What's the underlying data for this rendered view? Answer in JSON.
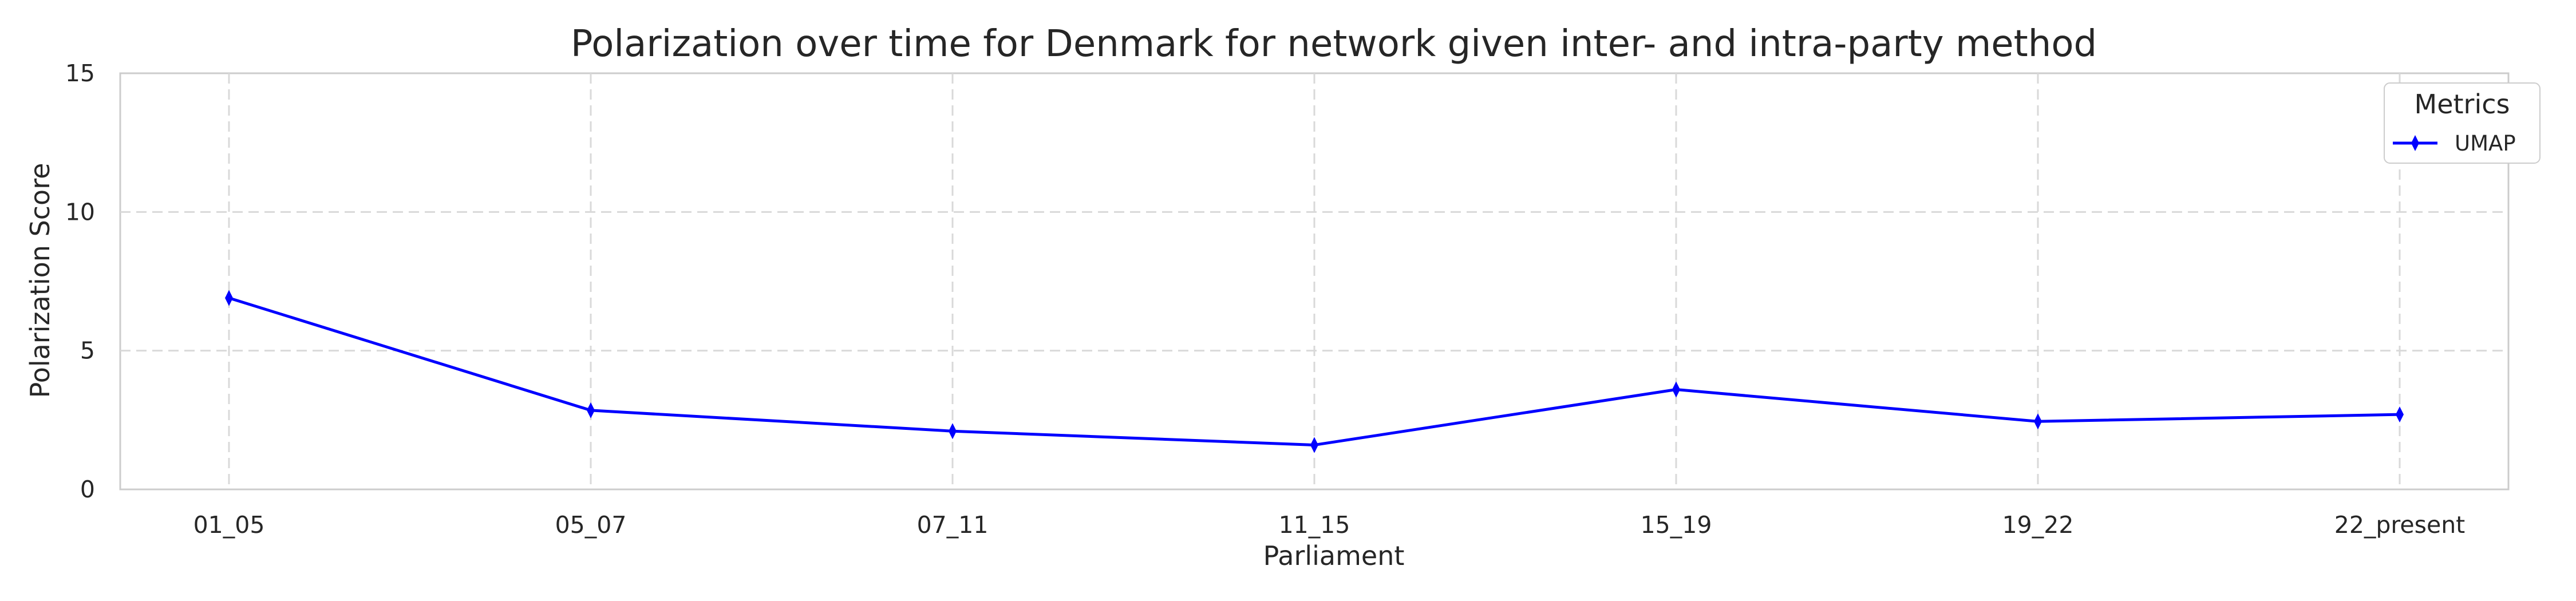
{
  "chart_data": {
    "type": "line",
    "title": "Polarization over time for Denmark for network given inter- and intra-party method",
    "xlabel": "Parliament",
    "ylabel": "Polarization Score",
    "categories": [
      "01_05",
      "05_07",
      "07_11",
      "11_15",
      "15_19",
      "19_22",
      "22_present"
    ],
    "series": [
      {
        "name": "UMAP",
        "values": [
          6.9,
          2.85,
          2.1,
          1.6,
          3.6,
          2.45,
          2.7
        ],
        "color": "#0000ff",
        "marker": "thin-diamond"
      }
    ],
    "ylim": [
      0,
      15
    ],
    "yticks": [
      0,
      5,
      10,
      15
    ],
    "grid": true,
    "grid_style": "dashed",
    "legend": {
      "title": "Metrics",
      "placement": "top-right"
    },
    "colors": {
      "background": "#ffffff",
      "grid": "#d9d9d9",
      "spine": "#cccccc",
      "text": "#262626",
      "line": "#0000ff"
    }
  }
}
